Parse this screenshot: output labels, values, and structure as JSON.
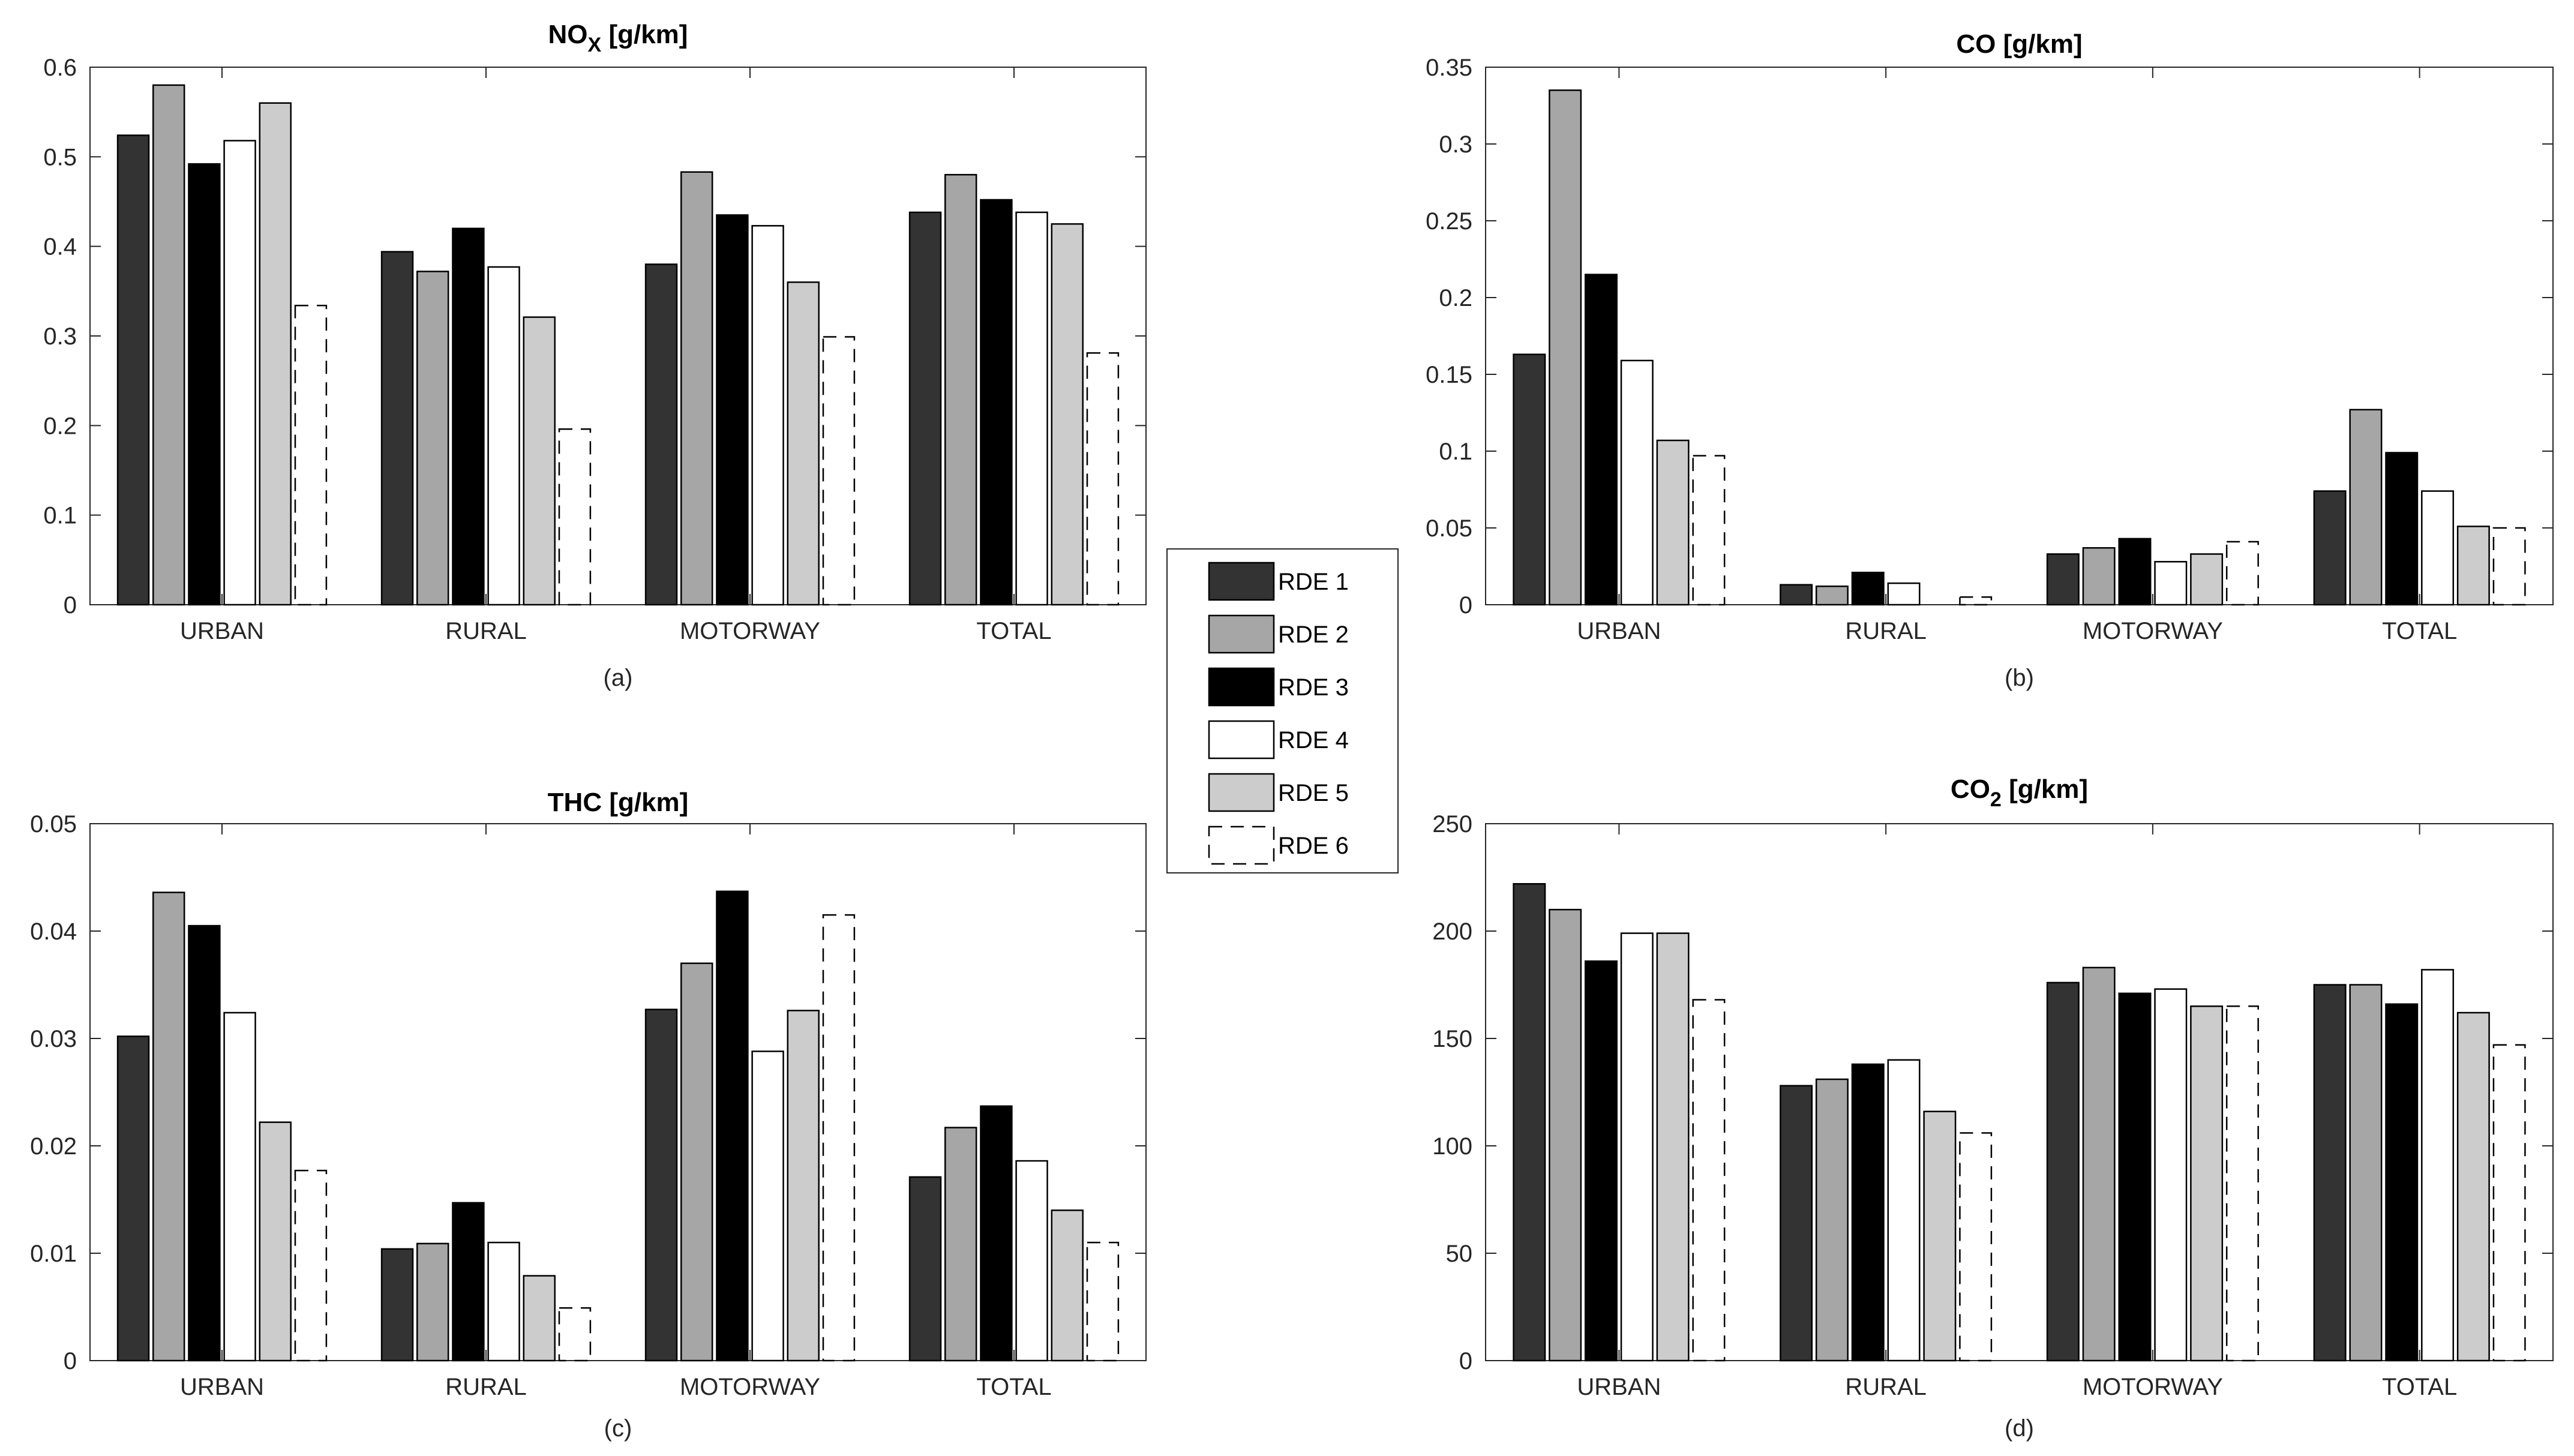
{
  "chart_data": [
    {
      "type": "bar",
      "id": "a",
      "title": "NO",
      "title_sub": "X",
      "title_unit": " [g/km]",
      "caption": "(a)",
      "categories": [
        "URBAN",
        "RURAL",
        "MOTORWAY",
        "TOTAL"
      ],
      "ylim": [
        0,
        0.6
      ],
      "yticks": [
        0,
        0.1,
        0.2,
        0.3,
        0.4,
        0.5,
        0.6
      ],
      "ytick_labels": [
        "0",
        "0.1",
        "0.2",
        "0.3",
        "0.4",
        "0.5",
        "0.6"
      ],
      "series": [
        {
          "name": "RDE 1",
          "values": [
            0.524,
            0.394,
            0.38,
            0.438
          ]
        },
        {
          "name": "RDE 2",
          "values": [
            0.58,
            0.372,
            0.483,
            0.48
          ]
        },
        {
          "name": "RDE 3",
          "values": [
            0.492,
            0.42,
            0.435,
            0.452
          ]
        },
        {
          "name": "RDE 4",
          "values": [
            0.518,
            0.377,
            0.423,
            0.438
          ]
        },
        {
          "name": "RDE 5",
          "values": [
            0.56,
            0.321,
            0.36,
            0.425
          ]
        },
        {
          "name": "RDE 6",
          "values": [
            0.334,
            0.196,
            0.299,
            0.281
          ]
        }
      ]
    },
    {
      "type": "bar",
      "id": "b",
      "title": "CO [g/km]",
      "title_sub": "",
      "title_unit": "",
      "caption": "(b)",
      "categories": [
        "URBAN",
        "RURAL",
        "MOTORWAY",
        "TOTAL"
      ],
      "ylim": [
        0,
        0.35
      ],
      "yticks": [
        0,
        0.05,
        0.1,
        0.15,
        0.2,
        0.25,
        0.3,
        0.35
      ],
      "ytick_labels": [
        "0",
        "0.05",
        "0.1",
        "0.15",
        "0.2",
        "0.25",
        "0.3",
        "0.35"
      ],
      "series": [
        {
          "name": "RDE 1",
          "values": [
            0.163,
            0.013,
            0.033,
            0.074
          ]
        },
        {
          "name": "RDE 2",
          "values": [
            0.335,
            0.012,
            0.037,
            0.127
          ]
        },
        {
          "name": "RDE 3",
          "values": [
            0.215,
            0.021,
            0.043,
            0.099
          ]
        },
        {
          "name": "RDE 4",
          "values": [
            0.159,
            0.014,
            0.028,
            0.074
          ]
        },
        {
          "name": "RDE 5",
          "values": [
            0.107,
            0.0,
            0.033,
            0.051
          ]
        },
        {
          "name": "RDE 6",
          "values": [
            0.097,
            0.005,
            0.041,
            0.05
          ]
        }
      ]
    },
    {
      "type": "bar",
      "id": "c",
      "title": "THC [g/km]",
      "title_sub": "",
      "title_unit": "",
      "caption": "(c)",
      "categories": [
        "URBAN",
        "RURAL",
        "MOTORWAY",
        "TOTAL"
      ],
      "ylim": [
        0,
        0.05
      ],
      "yticks": [
        0,
        0.01,
        0.02,
        0.03,
        0.04,
        0.05
      ],
      "ytick_labels": [
        "0",
        "0.01",
        "0.02",
        "0.03",
        "0.04",
        "0.05"
      ],
      "series": [
        {
          "name": "RDE 1",
          "values": [
            0.0302,
            0.0104,
            0.0327,
            0.0171
          ]
        },
        {
          "name": "RDE 2",
          "values": [
            0.0436,
            0.0109,
            0.037,
            0.0217
          ]
        },
        {
          "name": "RDE 3",
          "values": [
            0.0405,
            0.0147,
            0.0437,
            0.0237
          ]
        },
        {
          "name": "RDE 4",
          "values": [
            0.0324,
            0.011,
            0.0288,
            0.0186
          ]
        },
        {
          "name": "RDE 5",
          "values": [
            0.0222,
            0.0079,
            0.0326,
            0.014
          ]
        },
        {
          "name": "RDE 6",
          "values": [
            0.0177,
            0.0049,
            0.0415,
            0.011
          ]
        }
      ]
    },
    {
      "type": "bar",
      "id": "d",
      "title": "CO",
      "title_sub": "2",
      "title_unit": " [g/km]",
      "caption": "(d)",
      "categories": [
        "URBAN",
        "RURAL",
        "MOTORWAY",
        "TOTAL"
      ],
      "ylim": [
        0,
        250
      ],
      "yticks": [
        0,
        50,
        100,
        150,
        200,
        250
      ],
      "ytick_labels": [
        "0",
        "50",
        "100",
        "150",
        "200",
        "250"
      ],
      "series": [
        {
          "name": "RDE 1",
          "values": [
            222,
            128,
            176,
            175
          ]
        },
        {
          "name": "RDE 2",
          "values": [
            210,
            131,
            183,
            175
          ]
        },
        {
          "name": "RDE 3",
          "values": [
            186,
            138,
            171,
            166
          ]
        },
        {
          "name": "RDE 4",
          "values": [
            199,
            140,
            173,
            182
          ]
        },
        {
          "name": "RDE 5",
          "values": [
            199,
            116,
            165,
            162
          ]
        },
        {
          "name": "RDE 6",
          "values": [
            168,
            106,
            165,
            147
          ]
        }
      ]
    }
  ],
  "legend": {
    "location": "center",
    "entries": [
      {
        "label": "RDE 1",
        "fill": "#333333",
        "stroke": "#000000",
        "dashed": false
      },
      {
        "label": "RDE 2",
        "fill": "#a6a6a6",
        "stroke": "#000000",
        "dashed": false
      },
      {
        "label": "RDE 3",
        "fill": "#000000",
        "stroke": "#000000",
        "dashed": false
      },
      {
        "label": "RDE 4",
        "fill": "#ffffff",
        "stroke": "#000000",
        "dashed": false
      },
      {
        "label": "RDE 5",
        "fill": "#cccccc",
        "stroke": "#000000",
        "dashed": false
      },
      {
        "label": "RDE 6",
        "fill": "none",
        "stroke": "#000000",
        "dashed": true
      }
    ]
  }
}
